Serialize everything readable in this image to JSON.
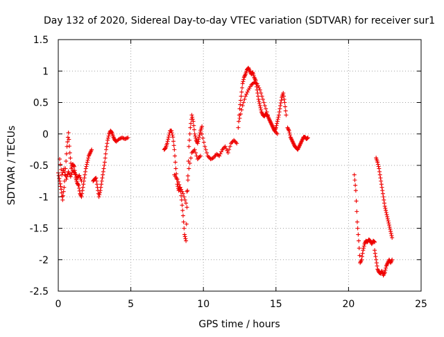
{
  "chart_data": {
    "type": "scatter",
    "title": "Day 132 of 2020, Sidereal Day-to-day VTEC variation (SDTVAR) for receiver sur1",
    "xlabel": "GPS time / hours",
    "ylabel": "SDTVAR / TECUs",
    "xlim": [
      0,
      25
    ],
    "ylim": [
      -2.5,
      1.5
    ],
    "xticks": [
      "0",
      "5",
      "10",
      "15",
      "20",
      "25"
    ],
    "yticks": [
      "1.5",
      "1",
      "0.5",
      "0",
      "-0.5",
      "-1",
      "-1.5",
      "-2",
      "-2.5"
    ],
    "grid": true,
    "marker": "+",
    "series": [
      {
        "name": "SDTVAR",
        "color": "#ee0000",
        "segments": [
          {
            "x": [
              0.0,
              0.1,
              0.2,
              0.3,
              0.4,
              0.5,
              0.6,
              0.7,
              0.8,
              0.9,
              1.0,
              1.1,
              1.2,
              1.3,
              1.4,
              1.5,
              1.6,
              1.7,
              1.8,
              1.9,
              2.0,
              2.1,
              2.2,
              2.3
            ],
            "y": [
              -0.62,
              -0.75,
              -0.88,
              -1.05,
              -0.85,
              -0.55,
              -0.2,
              0.02,
              -0.3,
              -0.55,
              -0.48,
              -0.52,
              -0.7,
              -0.78,
              -0.82,
              -0.95,
              -1.0,
              -0.85,
              -0.7,
              -0.55,
              -0.45,
              -0.35,
              -0.3,
              -0.25
            ]
          },
          {
            "x": [
              0.1,
              0.25,
              0.4,
              0.55,
              0.7,
              0.85,
              1.0,
              1.15,
              1.3,
              1.45,
              1.6
            ],
            "y": [
              -0.4,
              -0.65,
              -0.55,
              -0.72,
              -0.6,
              -0.68,
              -0.58,
              -0.62,
              -0.7,
              -0.66,
              -0.75
            ]
          },
          {
            "x": [
              2.4,
              2.5,
              2.6,
              2.7,
              2.8,
              2.9,
              3.0,
              3.1,
              3.2,
              3.3,
              3.4,
              3.5,
              3.6,
              3.7,
              3.8,
              3.9,
              4.0,
              4.2,
              4.4,
              4.6,
              4.8
            ],
            "y": [
              -0.75,
              -0.72,
              -0.7,
              -0.85,
              -1.0,
              -0.9,
              -0.75,
              -0.6,
              -0.45,
              -0.25,
              -0.1,
              0.0,
              0.05,
              0.02,
              -0.05,
              -0.1,
              -0.12,
              -0.08,
              -0.06,
              -0.08,
              -0.06
            ]
          },
          {
            "x": [
              7.3,
              7.4,
              7.5,
              7.6,
              7.7,
              7.8,
              7.9,
              8.0,
              8.1,
              8.2,
              8.3,
              8.4,
              8.5,
              8.6,
              8.7,
              8.8,
              8.9,
              9.0,
              9.1,
              9.2,
              9.3,
              9.4,
              9.5,
              9.6,
              9.7,
              9.8,
              9.9
            ],
            "y": [
              -0.25,
              -0.22,
              -0.15,
              -0.05,
              0.05,
              0.05,
              -0.05,
              -0.25,
              -0.55,
              -0.8,
              -0.9,
              -0.85,
              -1.05,
              -1.3,
              -1.6,
              -1.7,
              -0.9,
              -0.2,
              0.1,
              0.3,
              0.2,
              0.0,
              -0.1,
              -0.15,
              -0.05,
              0.05,
              0.12
            ]
          },
          {
            "x": [
              8.0,
              8.2,
              8.4,
              8.6,
              8.8,
              9.0,
              9.2,
              9.4,
              9.6,
              9.8
            ],
            "y": [
              -0.65,
              -0.72,
              -0.85,
              -0.95,
              -1.1,
              -0.55,
              -0.3,
              -0.25,
              -0.4,
              -0.35
            ]
          },
          {
            "x": [
              9.9,
              10.1,
              10.3,
              10.5,
              10.7,
              10.9,
              11.1,
              11.3,
              11.5,
              11.7,
              11.9,
              12.1,
              12.3
            ],
            "y": [
              0.0,
              -0.2,
              -0.35,
              -0.4,
              -0.38,
              -0.32,
              -0.35,
              -0.25,
              -0.2,
              -0.3,
              -0.15,
              -0.1,
              -0.15
            ]
          },
          {
            "x": [
              12.4,
              12.5,
              12.6,
              12.7,
              12.8,
              12.9,
              13.0,
              13.1,
              13.2,
              13.3,
              13.4,
              13.5,
              13.6,
              13.7,
              13.8,
              13.9,
              14.0,
              14.1,
              14.2,
              14.3,
              14.4,
              14.5,
              14.6,
              14.7,
              14.8,
              14.9,
              15.0,
              15.1,
              15.2,
              15.3,
              15.4,
              15.5,
              15.6,
              15.7
            ],
            "y": [
              0.1,
              0.4,
              0.6,
              0.8,
              0.9,
              0.95,
              1.02,
              1.05,
              1.0,
              0.95,
              0.98,
              0.9,
              0.85,
              0.7,
              0.55,
              0.45,
              0.35,
              0.3,
              0.28,
              0.32,
              0.3,
              0.25,
              0.2,
              0.15,
              0.1,
              0.05,
              0.1,
              0.2,
              0.3,
              0.45,
              0.58,
              0.65,
              0.5,
              0.3
            ]
          },
          {
            "x": [
              12.5,
              12.7,
              12.9,
              13.1,
              13.3,
              13.5,
              13.7,
              13.9,
              14.1,
              14.3,
              14.5,
              14.7,
              14.9,
              15.1
            ],
            "y": [
              0.25,
              0.45,
              0.6,
              0.7,
              0.78,
              0.82,
              0.8,
              0.7,
              0.55,
              0.4,
              0.25,
              0.15,
              0.05,
              0.0
            ]
          },
          {
            "x": [
              15.8,
              15.9,
              16.0,
              16.1,
              16.2,
              16.3,
              16.4,
              16.5,
              16.6,
              16.7,
              16.8,
              16.9,
              17.0,
              17.1,
              17.2
            ],
            "y": [
              0.1,
              0.05,
              -0.05,
              -0.1,
              -0.15,
              -0.2,
              -0.22,
              -0.25,
              -0.2,
              -0.15,
              -0.1,
              -0.05,
              -0.05,
              -0.08,
              -0.06
            ]
          },
          {
            "x": [
              20.4,
              20.5,
              20.6,
              20.7,
              20.8,
              20.9,
              21.0,
              21.1,
              21.2,
              21.3,
              21.4,
              21.5,
              21.6,
              21.7,
              21.8
            ],
            "y": [
              -0.65,
              -0.9,
              -1.4,
              -1.7,
              -2.05,
              -2.0,
              -1.85,
              -1.75,
              -1.7,
              -1.72,
              -1.68,
              -1.7,
              -1.75,
              -1.7,
              -1.72
            ]
          },
          {
            "x": [
              21.8,
              21.9,
              22.0,
              22.1,
              22.2,
              22.3,
              22.4,
              22.5,
              22.6,
              22.7,
              22.8,
              22.9,
              23.0
            ],
            "y": [
              -1.85,
              -2.0,
              -2.15,
              -2.2,
              -2.22,
              -2.18,
              -2.25,
              -2.2,
              -2.1,
              -2.05,
              -2.0,
              -2.05,
              -2.0
            ]
          },
          {
            "x": [
              21.9,
              22.0,
              22.1,
              22.2,
              22.3,
              22.4,
              22.5,
              22.6,
              22.7,
              22.8,
              22.9,
              23.0
            ],
            "y": [
              -0.38,
              -0.45,
              -0.55,
              -0.7,
              -0.85,
              -1.0,
              -1.15,
              -1.25,
              -1.35,
              -1.45,
              -1.55,
              -1.65
            ]
          }
        ]
      }
    ]
  }
}
